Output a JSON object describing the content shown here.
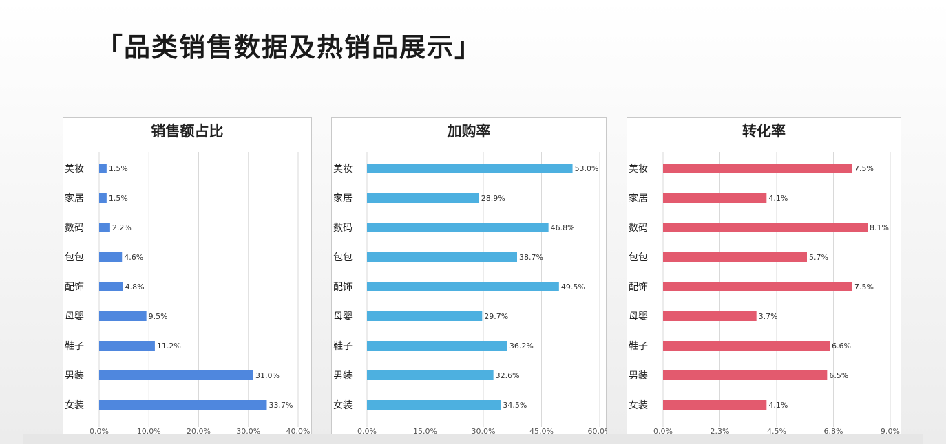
{
  "page": {
    "title": "「品类销售数据及热销品展示」"
  },
  "chart_data": [
    {
      "type": "bar",
      "title": "销售额占比",
      "categories": [
        "美妆",
        "家居",
        "数码",
        "包包",
        "配饰",
        "母婴",
        "鞋子",
        "男装",
        "女装"
      ],
      "values": [
        1.5,
        1.5,
        2.2,
        4.6,
        4.8,
        9.5,
        11.2,
        31.0,
        33.7
      ],
      "value_labels": [
        "1.5%",
        "1.5%",
        "2.2%",
        "4.6%",
        "4.8%",
        "9.5%",
        "11.2%",
        "31.0%",
        "33.7%"
      ],
      "xlim": [
        0,
        40
      ],
      "ticks": [
        0,
        10,
        20,
        30,
        40
      ],
      "tick_labels": [
        "0.0%",
        "10.0%",
        "20.0%",
        "30.0%",
        "40.0%"
      ],
      "color": "#4f87de",
      "orientation": "horizontal",
      "grid": true
    },
    {
      "type": "bar",
      "title": "加购率",
      "categories": [
        "美妆",
        "家居",
        "数码",
        "包包",
        "配饰",
        "母婴",
        "鞋子",
        "男装",
        "女装"
      ],
      "values": [
        53.0,
        28.9,
        46.8,
        38.7,
        49.5,
        29.7,
        36.2,
        32.6,
        34.5
      ],
      "value_labels": [
        "53.0%",
        "28.9%",
        "46.8%",
        "38.7%",
        "49.5%",
        "29.7%",
        "36.2%",
        "32.6%",
        "34.5%"
      ],
      "xlim": [
        0,
        60
      ],
      "ticks": [
        0,
        15,
        30,
        45,
        60
      ],
      "tick_labels": [
        "0.0%",
        "15.0%",
        "30.0%",
        "45.0%",
        "60.0%"
      ],
      "color": "#4db0e0",
      "orientation": "horizontal",
      "grid": true
    },
    {
      "type": "bar",
      "title": "转化率",
      "categories": [
        "美妆",
        "家居",
        "数码",
        "包包",
        "配饰",
        "母婴",
        "鞋子",
        "男装",
        "女装"
      ],
      "values": [
        7.5,
        4.1,
        8.1,
        5.7,
        7.5,
        3.7,
        6.6,
        6.5,
        4.1
      ],
      "value_labels": [
        "7.5%",
        "4.1%",
        "8.1%",
        "5.7%",
        "7.5%",
        "3.7%",
        "6.6%",
        "6.5%",
        "4.1%"
      ],
      "xlim": [
        0,
        9
      ],
      "ticks": [
        0,
        2.25,
        4.5,
        6.75,
        9
      ],
      "tick_labels": [
        "0.0%",
        "2.3%",
        "4.5%",
        "6.8%",
        "9.0%"
      ],
      "color": "#e35a6e",
      "orientation": "horizontal",
      "grid": true
    }
  ]
}
